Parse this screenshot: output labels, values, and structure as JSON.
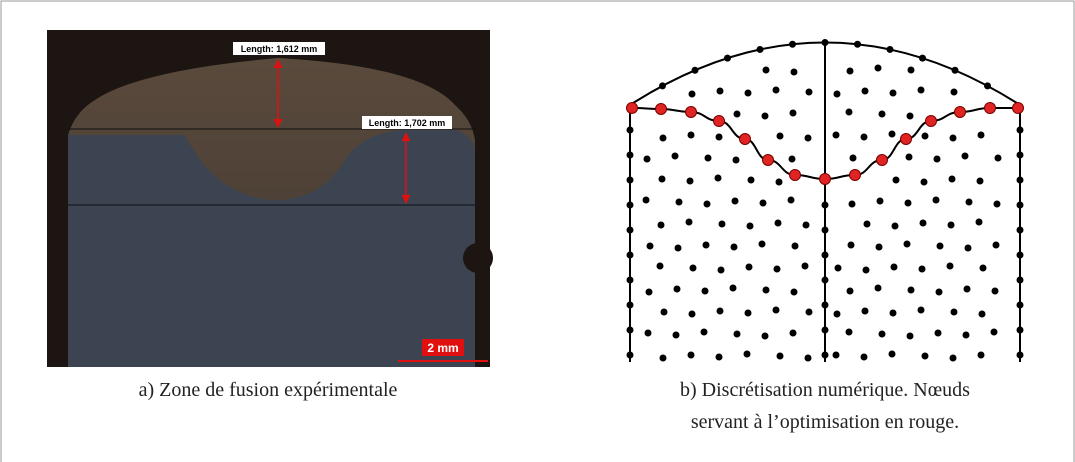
{
  "panel_a": {
    "measure_1": "Length: 1,612 mm",
    "measure_2": "Length: 1,702 mm",
    "scale_bar": "2 mm",
    "caption": "a)  Zone de fusion expérimentale"
  },
  "panel_b": {
    "caption_lines": [
      "b)  Discrétisation numérique. Nœuds",
      "servant à l’optimisation en rouge."
    ]
  }
}
